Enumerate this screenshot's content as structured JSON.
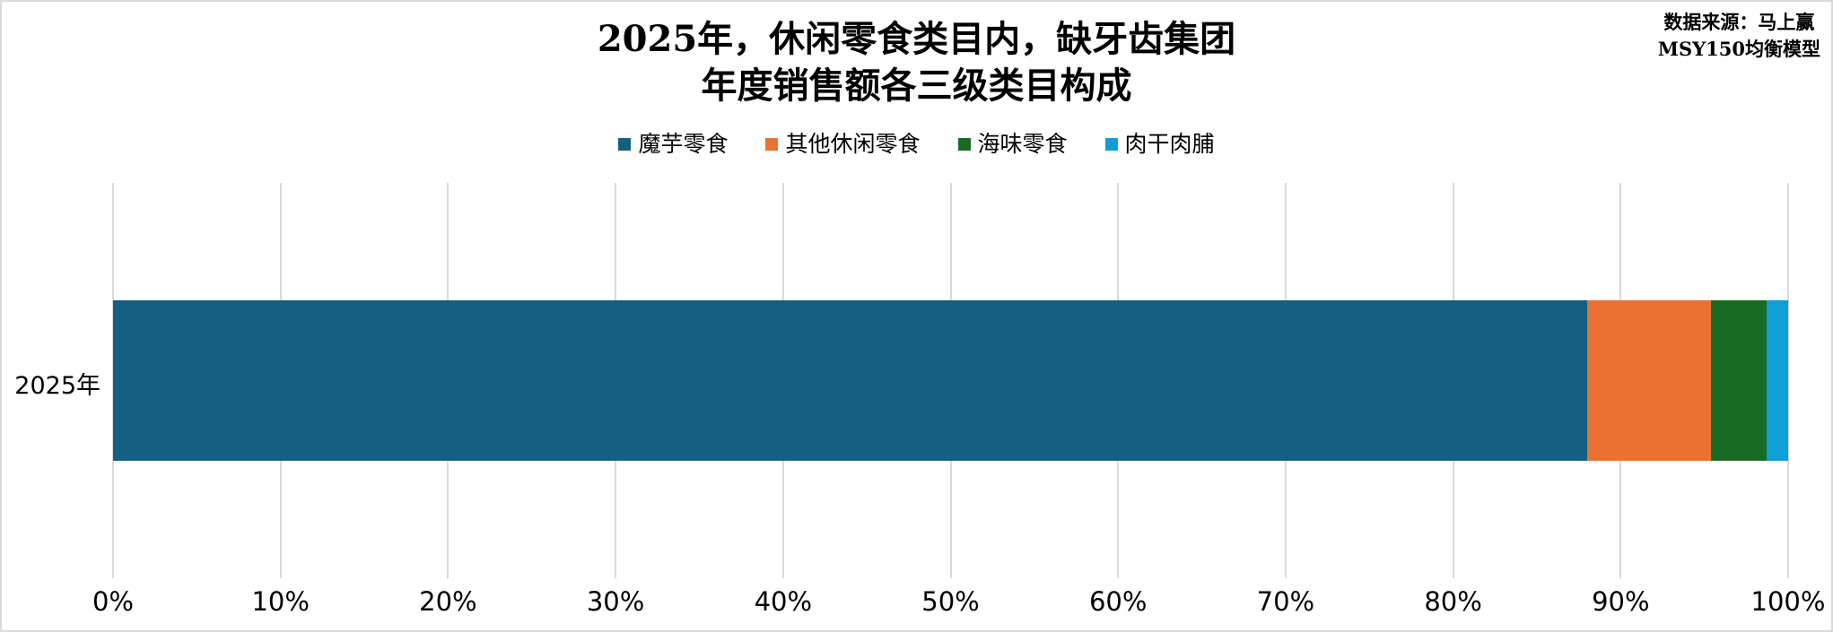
{
  "title": {
    "line1": "2025年，休闲零食类目内，缺牙齿集团",
    "line2": "年度销售额各三级类目构成"
  },
  "source": {
    "line1": "数据来源：马上赢",
    "line2": "MSY150均衡模型"
  },
  "y_axis": {
    "category_label": "2025年"
  },
  "chart_data": {
    "type": "bar",
    "orientation": "horizontal",
    "stacked": true,
    "title": "2025年，休闲零食类目内，缺牙齿集团年度销售额各三级类目构成",
    "categories": [
      "2025年"
    ],
    "series": [
      {
        "name": "魔芋零食",
        "values": [
          88.0
        ],
        "color": "#156082"
      },
      {
        "name": "其他休闲零食",
        "values": [
          7.4
        ],
        "color": "#E97132"
      },
      {
        "name": "海味零食",
        "values": [
          3.3
        ],
        "color": "#196B24"
      },
      {
        "name": "肉干肉脯",
        "values": [
          1.3
        ],
        "color": "#0F9ED5"
      }
    ],
    "xlabel": "",
    "ylabel": "",
    "xlim": [
      0,
      100
    ],
    "x_ticks": [
      "0%",
      "10%",
      "20%",
      "30%",
      "40%",
      "50%",
      "60%",
      "70%",
      "80%",
      "90%",
      "100%"
    ],
    "grid": true,
    "gridline_color": "#D9D9D9",
    "legend_position": "top"
  },
  "colors": {
    "background": "#FFFFFF",
    "frame_border": "#D9D9D9",
    "text": "#000000"
  }
}
